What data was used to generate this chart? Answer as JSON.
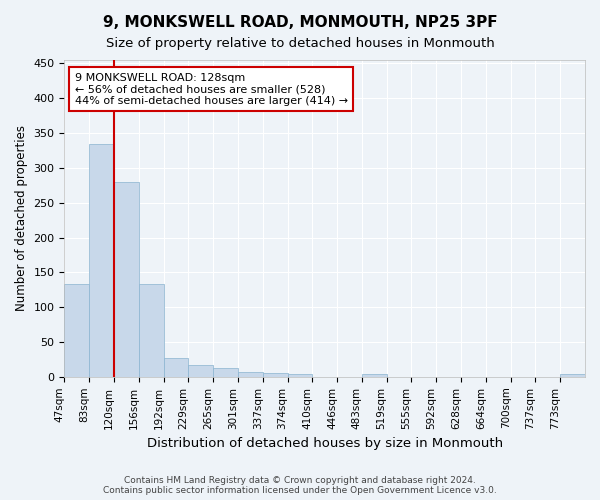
{
  "title": "9, MONKSWELL ROAD, MONMOUTH, NP25 3PF",
  "subtitle": "Size of property relative to detached houses in Monmouth",
  "xlabel": "Distribution of detached houses by size in Monmouth",
  "ylabel": "Number of detached properties",
  "bar_color": "#c8d8ea",
  "bar_edge_color": "#8ab4d0",
  "marker_color": "#cc0000",
  "marker_bin_index": 2,
  "categories": [
    "47sqm",
    "83sqm",
    "120sqm",
    "156sqm",
    "192sqm",
    "229sqm",
    "265sqm",
    "301sqm",
    "337sqm",
    "374sqm",
    "410sqm",
    "446sqm",
    "483sqm",
    "519sqm",
    "555sqm",
    "592sqm",
    "628sqm",
    "664sqm",
    "700sqm",
    "737sqm",
    "773sqm"
  ],
  "bin_edges": [
    47,
    83,
    120,
    156,
    192,
    229,
    265,
    301,
    337,
    374,
    410,
    446,
    483,
    519,
    555,
    592,
    628,
    664,
    700,
    737,
    773,
    809
  ],
  "values": [
    133,
    335,
    280,
    133,
    27,
    17,
    12,
    7,
    5,
    4,
    0,
    0,
    4,
    0,
    0,
    0,
    0,
    0,
    0,
    0,
    4
  ],
  "ylim": [
    0,
    455
  ],
  "yticks": [
    0,
    50,
    100,
    150,
    200,
    250,
    300,
    350,
    400,
    450
  ],
  "annotation_line1": "9 MONKSWELL ROAD: 128sqm",
  "annotation_line2": "← 56% of detached houses are smaller (528)",
  "annotation_line3": "44% of semi-detached houses are larger (414) →",
  "annotation_box_color": "white",
  "annotation_box_edge": "#cc0000",
  "footer_text": "Contains HM Land Registry data © Crown copyright and database right 2024.\nContains public sector information licensed under the Open Government Licence v3.0.",
  "background_color": "#eef3f8",
  "grid_color": "white",
  "title_fontsize": 11,
  "subtitle_fontsize": 9.5
}
